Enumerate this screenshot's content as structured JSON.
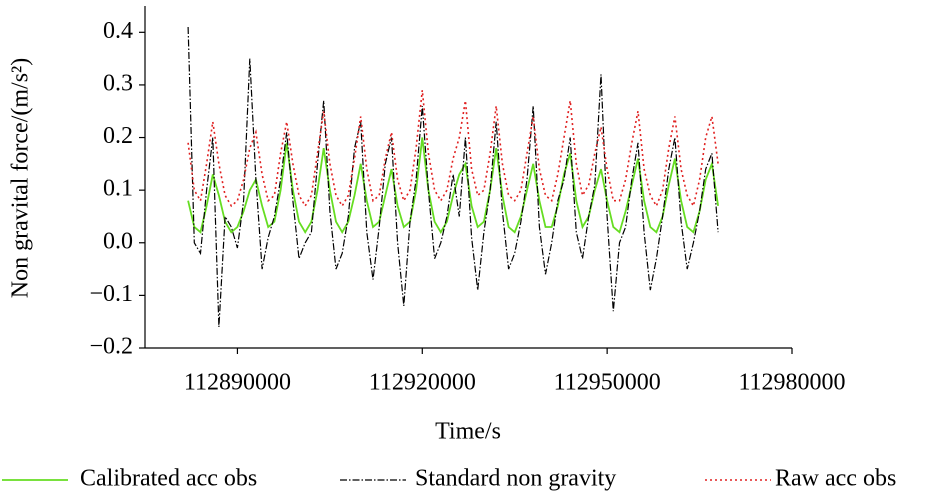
{
  "chart_data": {
    "type": "line",
    "xlabel": "Time/s",
    "ylabel": "Non gravital force/(m/s²)",
    "x": [
      112882000,
      112883000,
      112884000,
      112885000,
      112886000,
      112887000,
      112888000,
      112889000,
      112890000,
      112891000,
      112892000,
      112893000,
      112894000,
      112895000,
      112896000,
      112897000,
      112898000,
      112899000,
      112900000,
      112901000,
      112902000,
      112903000,
      112904000,
      112905000,
      112906000,
      112907000,
      112908000,
      112909000,
      112910000,
      112911000,
      112912000,
      112913000,
      112914000,
      112915000,
      112916000,
      112917000,
      112918000,
      112919000,
      112920000,
      112921000,
      112922000,
      112923000,
      112924000,
      112925000,
      112926000,
      112927000,
      112928000,
      112929000,
      112930000,
      112931000,
      112932000,
      112933000,
      112934000,
      112935000,
      112936000,
      112937000,
      112938000,
      112939000,
      112940000,
      112941000,
      112942000,
      112943000,
      112944000,
      112945000,
      112946000,
      112947000,
      112948000,
      112949000,
      112950000,
      112951000,
      112952000,
      112953000,
      112954000,
      112955000,
      112956000,
      112957000,
      112958000,
      112959000,
      112960000,
      112961000,
      112962000,
      112963000,
      112964000,
      112965000,
      112966000,
      112967000,
      112968000
    ],
    "series": [
      {
        "name": "Calibrated acc obs",
        "color": "#66dd22",
        "style": "solid",
        "values": [
          0.08,
          0.03,
          0.02,
          0.07,
          0.13,
          0.09,
          0.04,
          0.02,
          0.03,
          0.06,
          0.1,
          0.12,
          0.07,
          0.03,
          0.04,
          0.1,
          0.19,
          0.1,
          0.04,
          0.02,
          0.04,
          0.1,
          0.18,
          0.1,
          0.04,
          0.02,
          0.04,
          0.09,
          0.15,
          0.08,
          0.03,
          0.04,
          0.09,
          0.14,
          0.07,
          0.03,
          0.04,
          0.1,
          0.2,
          0.1,
          0.04,
          0.02,
          0.04,
          0.09,
          0.13,
          0.15,
          0.07,
          0.03,
          0.04,
          0.1,
          0.18,
          0.09,
          0.03,
          0.02,
          0.05,
          0.1,
          0.15,
          0.08,
          0.03,
          0.03,
          0.07,
          0.13,
          0.17,
          0.08,
          0.03,
          0.05,
          0.1,
          0.14,
          0.08,
          0.03,
          0.02,
          0.06,
          0.11,
          0.16,
          0.08,
          0.03,
          0.02,
          0.05,
          0.11,
          0.16,
          0.08,
          0.03,
          0.02,
          0.06,
          0.12,
          0.15,
          0.07
        ]
      },
      {
        "name": "Standard non gravity",
        "color": "#000000",
        "style": "dashdot",
        "values": [
          0.41,
          0.0,
          -0.02,
          0.1,
          0.2,
          -0.16,
          0.05,
          0.03,
          -0.01,
          0.08,
          0.35,
          0.12,
          -0.05,
          0.01,
          0.05,
          0.12,
          0.21,
          0.08,
          -0.03,
          0.0,
          0.02,
          0.15,
          0.27,
          0.06,
          -0.05,
          -0.02,
          0.05,
          0.18,
          0.23,
          0.02,
          -0.07,
          0.03,
          0.15,
          0.2,
          0.0,
          -0.12,
          0.04,
          0.12,
          0.26,
          0.1,
          -0.03,
          0.0,
          0.05,
          0.13,
          0.05,
          0.2,
          0.01,
          -0.09,
          0.02,
          0.1,
          0.23,
          0.06,
          -0.05,
          -0.02,
          0.04,
          0.12,
          0.26,
          0.03,
          -0.06,
          0.0,
          0.08,
          0.12,
          0.2,
          0.02,
          -0.03,
          0.05,
          0.11,
          0.32,
          0.05,
          -0.13,
          0.0,
          0.03,
          0.12,
          0.19,
          0.02,
          -0.09,
          -0.03,
          0.05,
          0.14,
          0.2,
          0.04,
          -0.05,
          0.0,
          0.06,
          0.14,
          0.17,
          0.02
        ]
      },
      {
        "name": "Raw acc obs",
        "color": "#e02020",
        "style": "dotted",
        "values": [
          0.19,
          0.1,
          0.08,
          0.15,
          0.23,
          0.15,
          0.09,
          0.07,
          0.08,
          0.12,
          0.18,
          0.21,
          0.13,
          0.08,
          0.09,
          0.17,
          0.23,
          0.15,
          0.09,
          0.07,
          0.09,
          0.17,
          0.25,
          0.15,
          0.09,
          0.07,
          0.09,
          0.16,
          0.24,
          0.14,
          0.08,
          0.09,
          0.16,
          0.21,
          0.12,
          0.08,
          0.1,
          0.18,
          0.29,
          0.17,
          0.1,
          0.08,
          0.1,
          0.16,
          0.2,
          0.27,
          0.14,
          0.09,
          0.1,
          0.17,
          0.26,
          0.15,
          0.09,
          0.08,
          0.1,
          0.17,
          0.24,
          0.14,
          0.09,
          0.08,
          0.13,
          0.2,
          0.27,
          0.15,
          0.09,
          0.11,
          0.17,
          0.22,
          0.14,
          0.08,
          0.08,
          0.12,
          0.19,
          0.25,
          0.14,
          0.09,
          0.07,
          0.1,
          0.18,
          0.24,
          0.14,
          0.09,
          0.07,
          0.12,
          0.2,
          0.24,
          0.15
        ]
      }
    ],
    "xlim": [
      112875000,
      112980000
    ],
    "xticks": [
      112890000,
      112920000,
      112950000,
      112980000
    ],
    "ylim": [
      -0.2,
      0.45
    ],
    "yticks": [
      {
        "value": 0.4,
        "label": "0.4"
      },
      {
        "value": 0.3,
        "label": "0.3"
      },
      {
        "value": 0.2,
        "label": "0.2"
      },
      {
        "value": 0.1,
        "label": "0.1"
      },
      {
        "value": 0,
        "label": "0.0"
      },
      {
        "value": -0.1,
        "label": "−0.1"
      },
      {
        "value": -0.2,
        "label": "−0.2"
      }
    ],
    "grid": false,
    "legend": "bottom"
  }
}
